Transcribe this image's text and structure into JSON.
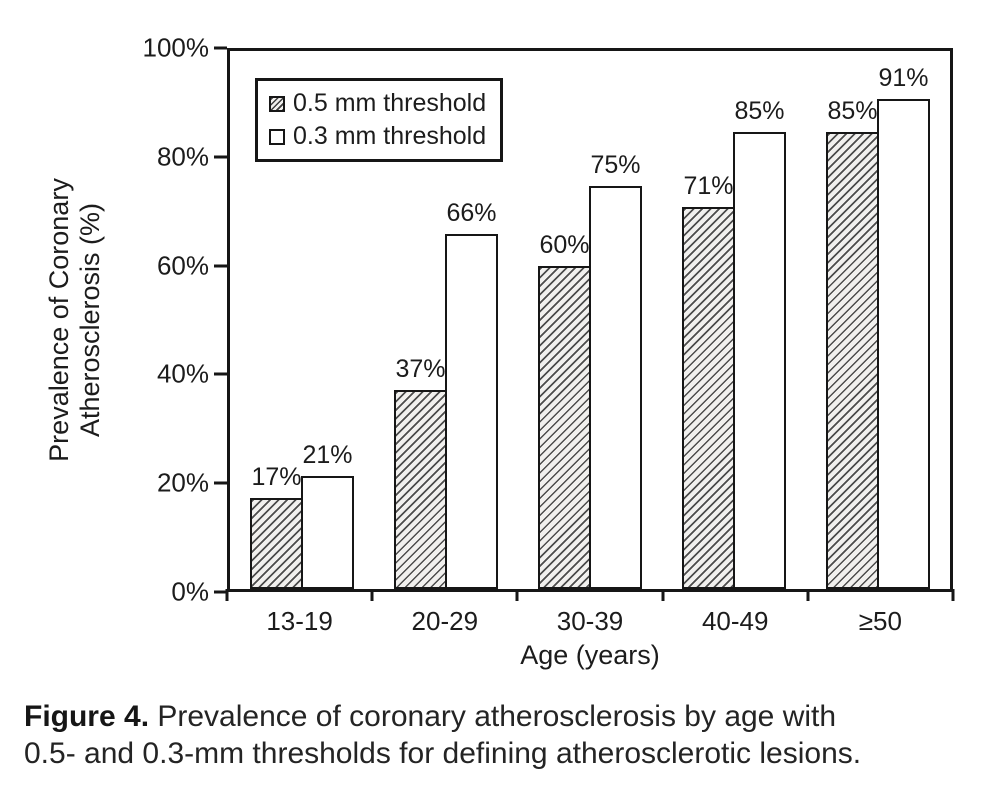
{
  "chart_data": {
    "type": "bar",
    "title": "",
    "categories": [
      "13-19",
      "20-29",
      "30-39",
      "40-49",
      "≥50"
    ],
    "series": [
      {
        "name": "0.5 mm threshold",
        "style": "hatched",
        "values": [
          17,
          37,
          60,
          71,
          85
        ]
      },
      {
        "name": "0.3 mm threshold",
        "style": "open",
        "values": [
          21,
          66,
          75,
          85,
          91
        ]
      }
    ],
    "value_labels": [
      [
        "17%",
        "21%"
      ],
      [
        "37%",
        "66%"
      ],
      [
        "60%",
        "75%"
      ],
      [
        "71%",
        "85%"
      ],
      [
        "85%",
        "91%"
      ]
    ],
    "xlabel": "Age (years)",
    "ylabel": "Prevalence of Coronary Atherosclerosis (%)",
    "ylabel_lines": [
      "Prevalence of Coronary",
      "Atherosclerosis (%)"
    ],
    "ylim": [
      0,
      100
    ],
    "ytick_values": [
      0,
      20,
      40,
      60,
      80,
      100
    ],
    "yticks": [
      "0%",
      "20%",
      "40%",
      "60%",
      "80%",
      "100%"
    ],
    "legend_position": "top-left",
    "grid": false
  },
  "caption": {
    "label": "Figure 4.",
    "text": "Prevalence of coronary atherosclerosis by age with 0.5- and 0.3-mm thresholds for defining atherosclerotic lesions.",
    "line1": "Prevalence of coronary atherosclerosis by age with",
    "line2": "0.5- and 0.3-mm thresholds for defining atherosclerotic lesions."
  },
  "colors": {
    "ink": "#161616",
    "background": "#ffffff",
    "open_bar_fill": "#ffffff",
    "hatch_base": "#f1f0ee"
  }
}
